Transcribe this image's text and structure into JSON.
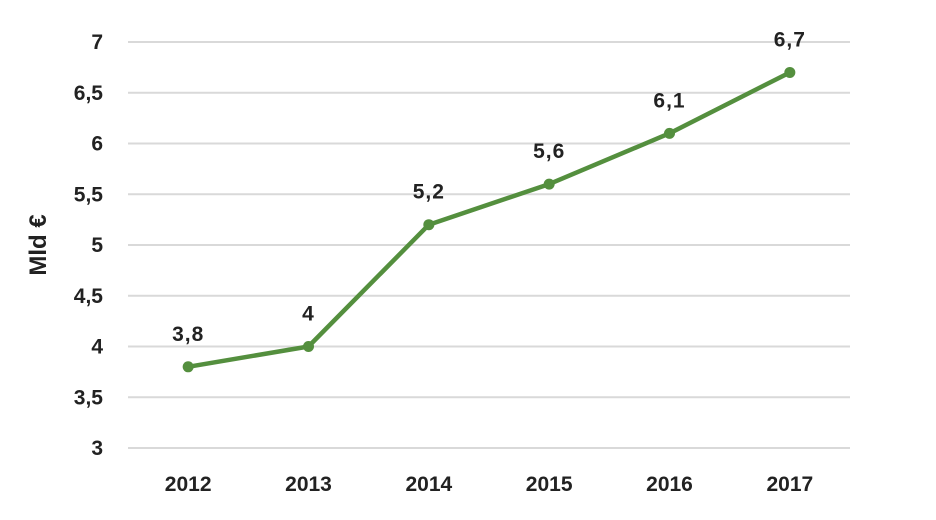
{
  "chart_data": {
    "type": "line",
    "title": "",
    "xlabel": "",
    "ylabel": "Mld €",
    "categories": [
      "2012",
      "2013",
      "2014",
      "2015",
      "2016",
      "2017"
    ],
    "series": [
      {
        "values": [
          3.8,
          4,
          5.2,
          5.6,
          6.1,
          6.7
        ],
        "labels": [
          "3,8",
          "4",
          "5,2",
          "5,6",
          "6,1",
          "6,7"
        ],
        "color": "#548f3e"
      }
    ],
    "ylim": [
      3,
      7
    ],
    "yticks": [
      3,
      3.5,
      4,
      4.5,
      5,
      5.5,
      6,
      6.5,
      7
    ],
    "ytick_labels": [
      "3",
      "3,5",
      "4",
      "4,5",
      "5",
      "5,5",
      "6",
      "6,5",
      "7"
    ],
    "grid": true,
    "legend": "none",
    "data_labels": true
  }
}
